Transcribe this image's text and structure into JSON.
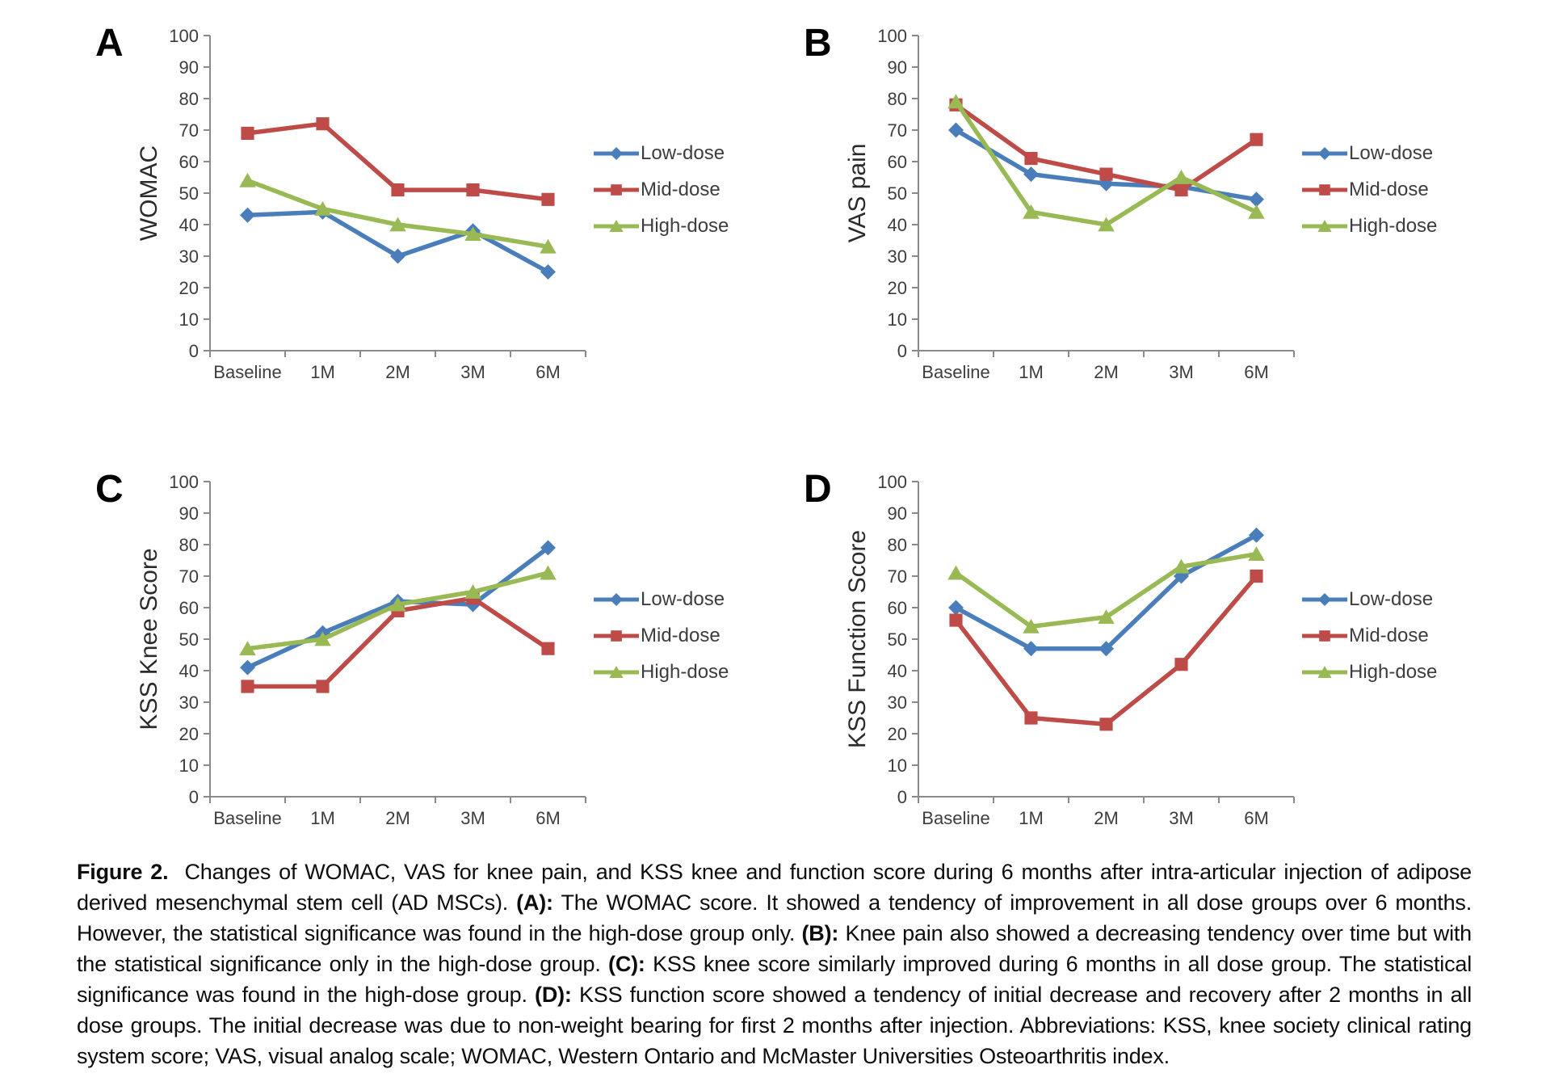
{
  "colors": {
    "low_dose": "#4a7ebb",
    "mid_dose": "#be4b48",
    "high_dose": "#98b954",
    "axis": "#8a8a8a",
    "tick_label": "#3d3d3d",
    "axis_title": "#2b2b2b"
  },
  "chart_data": [
    {
      "type": "line",
      "panel": "A",
      "ylabel": "WOMAC",
      "xlabel": "",
      "ylim": [
        0,
        100
      ],
      "ytick_step": 10,
      "grid": false,
      "legend_position": "right",
      "categories": [
        "Baseline",
        "1M",
        "2M",
        "3M",
        "6M"
      ],
      "series": [
        {
          "name": "Low-dose",
          "marker": "diamond",
          "color": "#4a7ebb",
          "values": [
            43,
            44,
            30,
            38,
            25
          ]
        },
        {
          "name": "Mid-dose",
          "marker": "square",
          "color": "#be4b48",
          "values": [
            69,
            72,
            51,
            51,
            48
          ]
        },
        {
          "name": "High-dose",
          "marker": "triangle",
          "color": "#98b954",
          "values": [
            54,
            45,
            40,
            37,
            33
          ]
        }
      ]
    },
    {
      "type": "line",
      "panel": "B",
      "ylabel": "VAS pain",
      "xlabel": "",
      "ylim": [
        0,
        100
      ],
      "ytick_step": 10,
      "grid": false,
      "legend_position": "right",
      "categories": [
        "Baseline",
        "1M",
        "2M",
        "3M",
        "6M"
      ],
      "series": [
        {
          "name": "Low-dose",
          "marker": "diamond",
          "color": "#4a7ebb",
          "values": [
            70,
            56,
            53,
            52,
            48
          ]
        },
        {
          "name": "Mid-dose",
          "marker": "square",
          "color": "#be4b48",
          "values": [
            78,
            61,
            56,
            51,
            67
          ]
        },
        {
          "name": "High-dose",
          "marker": "triangle",
          "color": "#98b954",
          "values": [
            79,
            44,
            40,
            55,
            44
          ]
        }
      ]
    },
    {
      "type": "line",
      "panel": "C",
      "ylabel": "KSS Knee Score",
      "xlabel": "",
      "ylim": [
        0,
        100
      ],
      "ytick_step": 10,
      "grid": false,
      "legend_position": "right",
      "categories": [
        "Baseline",
        "1M",
        "2M",
        "3M",
        "6M"
      ],
      "series": [
        {
          "name": "Low-dose",
          "marker": "diamond",
          "color": "#4a7ebb",
          "values": [
            41,
            52,
            62,
            61,
            79
          ]
        },
        {
          "name": "Mid-dose",
          "marker": "square",
          "color": "#be4b48",
          "values": [
            35,
            35,
            59,
            63,
            47
          ]
        },
        {
          "name": "High-dose",
          "marker": "triangle",
          "color": "#98b954",
          "values": [
            47,
            50,
            61,
            65,
            71
          ]
        }
      ]
    },
    {
      "type": "line",
      "panel": "D",
      "ylabel": "KSS Function Score",
      "xlabel": "",
      "ylim": [
        0,
        100
      ],
      "ytick_step": 10,
      "grid": false,
      "legend_position": "right",
      "categories": [
        "Baseline",
        "1M",
        "2M",
        "3M",
        "6M"
      ],
      "series": [
        {
          "name": "Low-dose",
          "marker": "diamond",
          "color": "#4a7ebb",
          "values": [
            60,
            47,
            47,
            70,
            83
          ]
        },
        {
          "name": "Mid-dose",
          "marker": "square",
          "color": "#be4b48",
          "values": [
            56,
            25,
            23,
            42,
            70
          ]
        },
        {
          "name": "High-dose",
          "marker": "triangle",
          "color": "#98b954",
          "values": [
            71,
            54,
            57,
            73,
            77
          ]
        }
      ]
    }
  ],
  "figure": {
    "caption_segments": [
      {
        "text": "Figure 2.",
        "bold": true
      },
      {
        "text": "  Changes of WOMAC, VAS for knee pain, and KSS knee and function score during 6 months after intra-articular injection of adipose derived mesenchymal stem cell (AD MSCs). ",
        "bold": false
      },
      {
        "text": "(A):",
        "bold": true
      },
      {
        "text": " The WOMAC score. It showed a tendency of improvement in all dose groups over 6 months. However, the statistical significance was found in the high-dose group only. ",
        "bold": false
      },
      {
        "text": "(B):",
        "bold": true
      },
      {
        "text": " Knee pain also showed a decreasing tendency over time but with the statistical significance only in the high-dose group. ",
        "bold": false
      },
      {
        "text": "(C):",
        "bold": true
      },
      {
        "text": " KSS knee score similarly improved during 6 months in all dose group. The statistical significance was found in the high-dose group. ",
        "bold": false
      },
      {
        "text": "(D):",
        "bold": true
      },
      {
        "text": " KSS function score showed a tendency of initial decrease and recovery after 2 months in all dose groups. The initial decrease was due to non-weight bearing for first 2 months after injection. Abbreviations: KSS, knee society clinical rating system score; VAS, visual analog scale; WOMAC, Western Ontario and McMaster Universities Osteoarthritis index.",
        "bold": false
      }
    ]
  }
}
